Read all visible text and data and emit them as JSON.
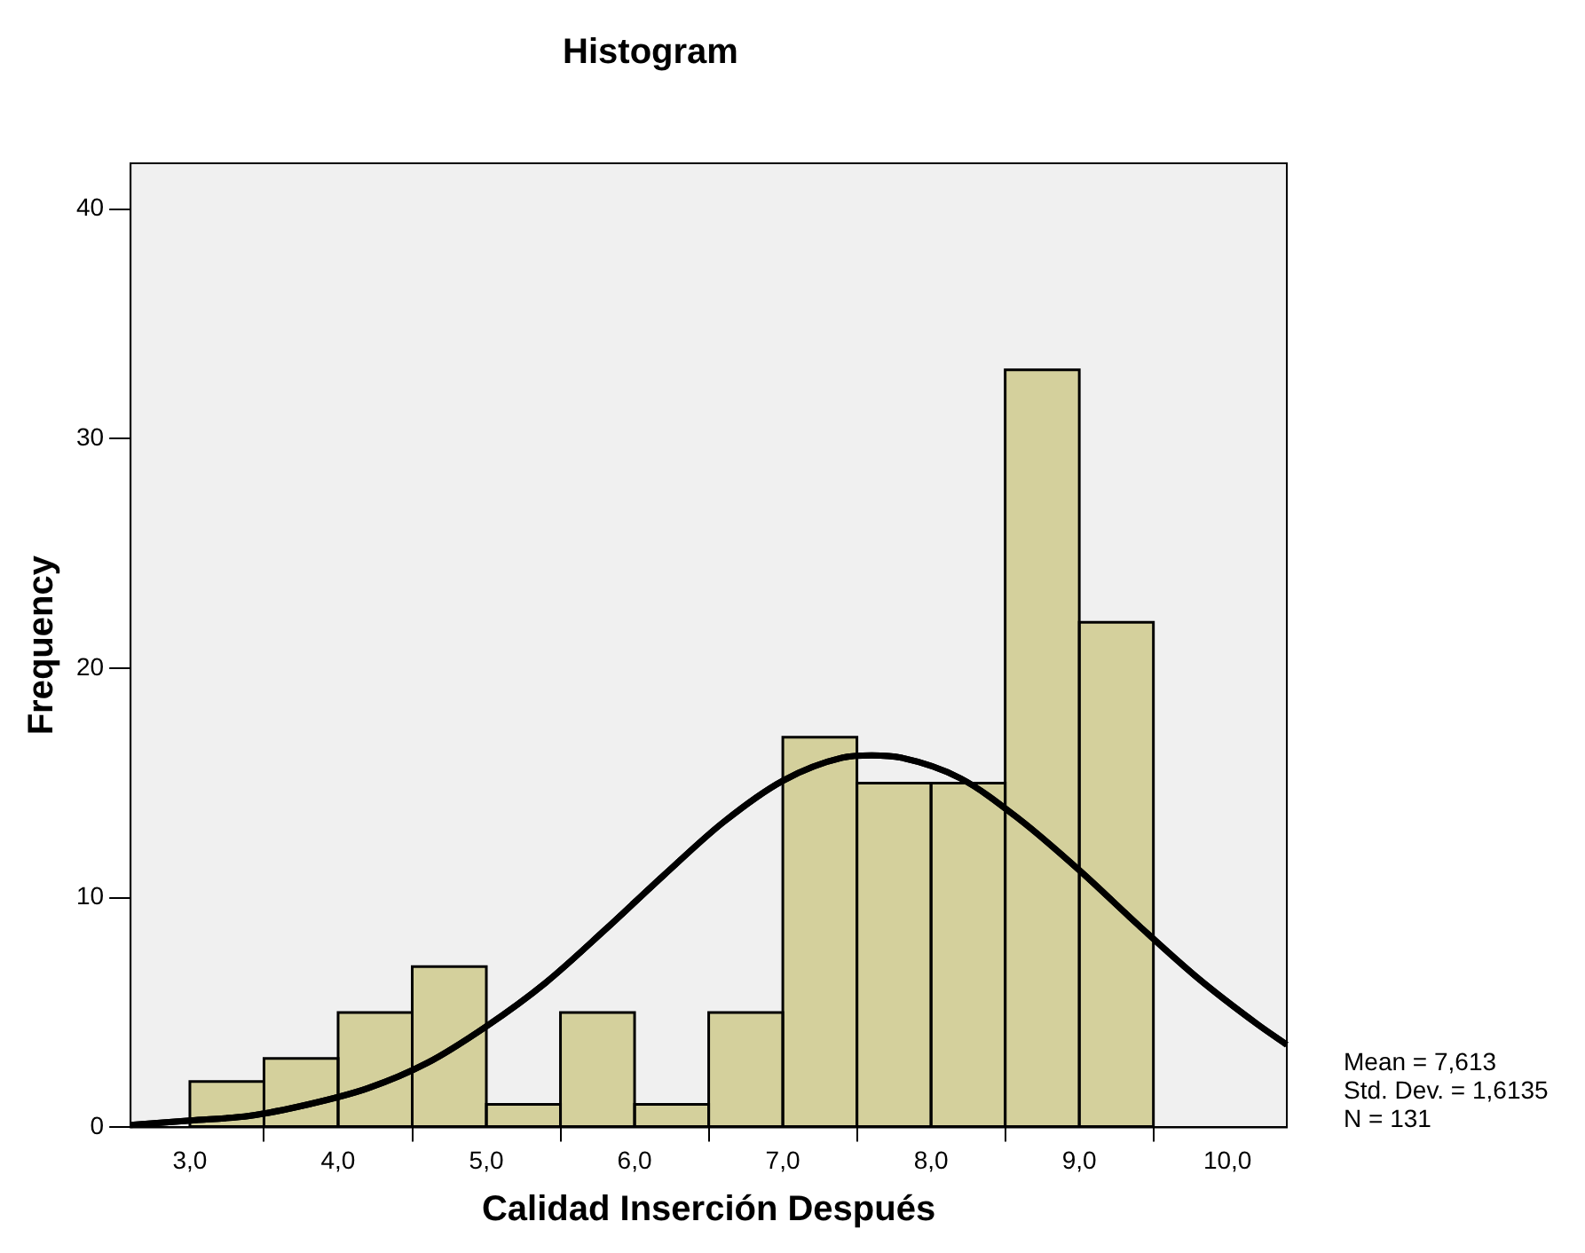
{
  "chart_data": {
    "type": "histogram",
    "title": "Histogram",
    "xlabel": "Calidad Inserción Después",
    "ylabel": "Frequency",
    "series": [
      {
        "color": "#d4d09c",
        "bins": [
          3.0,
          3.5,
          4.0,
          4.5,
          5.0,
          5.5,
          6.0,
          6.5,
          7.0,
          7.5,
          8.0,
          8.5,
          9.0,
          9.5
        ],
        "values": [
          2,
          3,
          5,
          7,
          1,
          5,
          1,
          5,
          17,
          15,
          15,
          33,
          22
        ]
      },
      {
        "type": "line",
        "color": "#000000",
        "x": [
          2.6,
          3.0,
          3.4,
          3.8,
          4.2,
          4.6,
          5.0,
          5.4,
          5.8,
          6.2,
          6.6,
          7.0,
          7.4,
          7.6,
          7.8,
          8.2,
          8.6,
          9.0,
          9.4,
          9.8,
          10.2,
          10.4
        ],
        "values": [
          0.1,
          0.3,
          0.5,
          1.0,
          1.7,
          2.8,
          4.4,
          6.3,
          8.6,
          11.0,
          13.3,
          15.1,
          16.1,
          16.2,
          16.1,
          15.2,
          13.4,
          11.2,
          8.8,
          6.5,
          4.5,
          3.6
        ]
      }
    ],
    "xlim": [
      2.6,
      10.4
    ],
    "xticks": [
      {
        "value": 3,
        "label": "3,0"
      },
      {
        "value": 4,
        "label": "4,0"
      },
      {
        "value": 5,
        "label": "5,0"
      },
      {
        "value": 6,
        "label": "6,0"
      },
      {
        "value": 7,
        "label": "7,0"
      },
      {
        "value": 8,
        "label": "8,0"
      },
      {
        "value": 9,
        "label": "9,0"
      },
      {
        "value": 10,
        "label": "10,0"
      }
    ],
    "ylim": [
      0,
      42
    ],
    "yticks": [
      0,
      10,
      20,
      30,
      40
    ],
    "grid": false,
    "legend": false,
    "marker": "none",
    "line_style": "solid",
    "annotations": [
      "Mean = 7,613",
      "Std. Dev. = 1,6135",
      "N = 131"
    ]
  }
}
